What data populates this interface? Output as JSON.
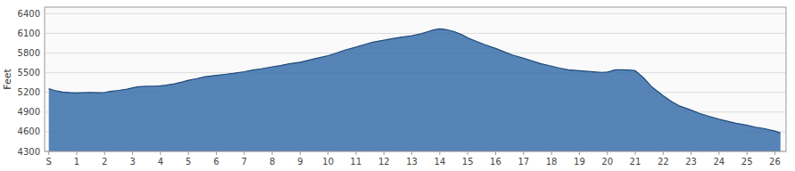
{
  "chart_data": {
    "type": "area",
    "y_label": "Feet",
    "color": "#3a6eaa",
    "grid": true,
    "x": [
      0.0,
      0.2,
      0.5,
      0.8,
      1.0,
      1.2,
      1.5,
      1.8,
      2.0,
      2.2,
      2.5,
      2.8,
      3.0,
      3.2,
      3.5,
      3.8,
      4.0,
      4.2,
      4.5,
      4.8,
      5.0,
      5.3,
      5.6,
      6.0,
      6.3,
      6.6,
      7.0,
      7.3,
      7.6,
      8.0,
      8.3,
      8.6,
      9.0,
      9.3,
      9.6,
      10.0,
      10.3,
      10.6,
      11.0,
      11.3,
      11.6,
      12.0,
      12.3,
      12.6,
      13.0,
      13.3,
      13.6,
      13.8,
      14.0,
      14.2,
      14.5,
      14.8,
      15.0,
      15.3,
      15.6,
      16.0,
      16.3,
      16.6,
      17.0,
      17.3,
      17.6,
      18.0,
      18.3,
      18.6,
      19.0,
      19.3,
      19.6,
      19.8,
      20.0,
      20.1,
      20.2,
      20.3,
      20.5,
      20.8,
      21.0,
      21.3,
      21.6,
      22.0,
      22.3,
      22.6,
      23.0,
      23.3,
      23.6,
      24.0,
      24.3,
      24.6,
      25.0,
      25.3,
      25.6,
      26.0,
      26.2
    ],
    "values": [
      5255,
      5230,
      5205,
      5195,
      5190,
      5195,
      5200,
      5195,
      5200,
      5215,
      5230,
      5250,
      5270,
      5285,
      5295,
      5295,
      5300,
      5310,
      5330,
      5360,
      5385,
      5410,
      5440,
      5460,
      5475,
      5490,
      5515,
      5540,
      5560,
      5590,
      5610,
      5635,
      5660,
      5690,
      5720,
      5760,
      5800,
      5845,
      5890,
      5930,
      5965,
      5995,
      6020,
      6040,
      6065,
      6090,
      6130,
      6155,
      6170,
      6160,
      6130,
      6080,
      6030,
      5980,
      5930,
      5870,
      5820,
      5770,
      5720,
      5680,
      5640,
      5600,
      5570,
      5545,
      5530,
      5520,
      5510,
      5505,
      5510,
      5520,
      5535,
      5545,
      5545,
      5540,
      5530,
      5420,
      5280,
      5150,
      5060,
      4990,
      4930,
      4880,
      4840,
      4790,
      4760,
      4730,
      4700,
      4670,
      4650,
      4610,
      4580
    ],
    "ylim": [
      4300,
      6500
    ],
    "yticks": [
      4300,
      4600,
      4900,
      5200,
      5500,
      5800,
      6100,
      6400
    ],
    "xlim": [
      -0.15,
      26.4
    ],
    "xticks": [
      {
        "value": 0,
        "label": "S"
      },
      1,
      2,
      3,
      4,
      5,
      6,
      7,
      8,
      9,
      10,
      11,
      12,
      13,
      14,
      15,
      16,
      17,
      18,
      19,
      20,
      21,
      22,
      23,
      24,
      25,
      26
    ]
  }
}
